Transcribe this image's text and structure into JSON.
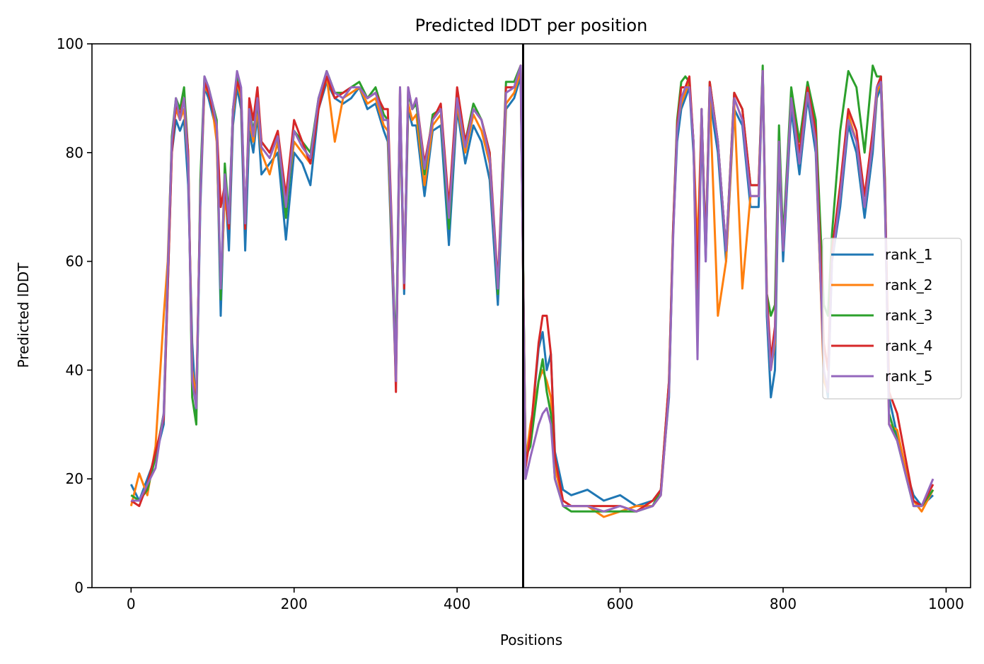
{
  "chart_data": {
    "type": "line",
    "title": "Predicted lDDT per position",
    "xlabel": "Positions",
    "ylabel": "Predicted lDDT",
    "xlim": [
      -48,
      1030
    ],
    "ylim": [
      0,
      100
    ],
    "xticks": [
      0,
      200,
      400,
      600,
      800,
      1000
    ],
    "yticks": [
      0,
      20,
      40,
      60,
      80,
      100
    ],
    "grid": false,
    "legend_position": "center-right",
    "chain_break": {
      "x": 481,
      "color": "#000000"
    },
    "x_sample": [
      0,
      10,
      20,
      30,
      40,
      45,
      50,
      55,
      60,
      65,
      70,
      75,
      80,
      85,
      90,
      95,
      100,
      105,
      110,
      115,
      120,
      125,
      130,
      135,
      140,
      145,
      150,
      155,
      160,
      170,
      180,
      190,
      200,
      210,
      220,
      230,
      240,
      250,
      260,
      270,
      280,
      290,
      300,
      310,
      315,
      320,
      325,
      330,
      335,
      340,
      345,
      350,
      360,
      370,
      380,
      390,
      400,
      410,
      420,
      430,
      440,
      450,
      460,
      470,
      478,
      484,
      490,
      500,
      505,
      510,
      515,
      520,
      530,
      540,
      560,
      580,
      600,
      620,
      640,
      650,
      660,
      665,
      670,
      675,
      680,
      685,
      690,
      695,
      700,
      705,
      710,
      720,
      730,
      740,
      750,
      760,
      770,
      775,
      780,
      785,
      790,
      795,
      800,
      810,
      820,
      830,
      840,
      850,
      855,
      860,
      870,
      880,
      890,
      900,
      910,
      915,
      920,
      925,
      930,
      940,
      950,
      960,
      970,
      984
    ],
    "series": [
      {
        "name": "rank_1",
        "color": "#1f77b4",
        "values": [
          19,
          16,
          20,
          24,
          30,
          55,
          80,
          86,
          84,
          86,
          74,
          45,
          32,
          70,
          92,
          90,
          87,
          84,
          50,
          75,
          62,
          85,
          92,
          88,
          62,
          84,
          80,
          87,
          76,
          78,
          80,
          64,
          80,
          78,
          74,
          88,
          93,
          90,
          89,
          90,
          92,
          88,
          89,
          84,
          82,
          60,
          38,
          88,
          54,
          88,
          85,
          85,
          72,
          84,
          85,
          63,
          88,
          78,
          85,
          82,
          75,
          52,
          88,
          90,
          94,
          24,
          28,
          44,
          47,
          40,
          43,
          25,
          18,
          17,
          18,
          16,
          17,
          15,
          16,
          18,
          35,
          65,
          82,
          88,
          90,
          92,
          80,
          60,
          85,
          60,
          90,
          80,
          60,
          88,
          85,
          70,
          70,
          95,
          50,
          35,
          40,
          80,
          60,
          88,
          76,
          90,
          80,
          40,
          35,
          60,
          70,
          85,
          80,
          68,
          80,
          90,
          92,
          70,
          35,
          28,
          22,
          17,
          15,
          17
        ]
      },
      {
        "name": "rank_2",
        "color": "#ff7f0e",
        "values": [
          15,
          21,
          17,
          26,
          50,
          60,
          82,
          88,
          86,
          88,
          78,
          40,
          35,
          72,
          92,
          91,
          88,
          82,
          55,
          72,
          66,
          87,
          93,
          90,
          68,
          86,
          82,
          88,
          80,
          76,
          82,
          70,
          82,
          80,
          78,
          89,
          94,
          82,
          90,
          91,
          92,
          89,
          90,
          85,
          84,
          62,
          40,
          89,
          58,
          89,
          86,
          87,
          74,
          85,
          87,
          68,
          89,
          80,
          87,
          84,
          78,
          55,
          89,
          91,
          95,
          23,
          30,
          38,
          40,
          38,
          35,
          22,
          16,
          15,
          15,
          13,
          14,
          15,
          15,
          17,
          36,
          65,
          85,
          89,
          91,
          93,
          82,
          62,
          87,
          62,
          91,
          50,
          60,
          89,
          55,
          72,
          72,
          95,
          52,
          40,
          45,
          82,
          62,
          90,
          78,
          91,
          82,
          38,
          36,
          62,
          72,
          87,
          82,
          70,
          82,
          91,
          93,
          72,
          30,
          29,
          22,
          16,
          14,
          18
        ]
      },
      {
        "name": "rank_3",
        "color": "#2ca02c",
        "values": [
          17,
          16,
          18,
          24,
          32,
          58,
          83,
          90,
          88,
          92,
          80,
          35,
          30,
          75,
          94,
          92,
          89,
          86,
          53,
          78,
          68,
          88,
          94,
          91,
          66,
          88,
          84,
          89,
          82,
          80,
          83,
          68,
          84,
          82,
          80,
          90,
          95,
          91,
          91,
          92,
          93,
          90,
          92,
          87,
          86,
          64,
          42,
          91,
          56,
          91,
          88,
          89,
          76,
          87,
          88,
          66,
          91,
          82,
          89,
          86,
          80,
          54,
          93,
          93,
          96,
          24,
          26,
          38,
          42,
          36,
          32,
          20,
          15,
          14,
          14,
          14,
          14,
          14,
          15,
          18,
          38,
          66,
          86,
          93,
          94,
          93,
          82,
          45,
          88,
          62,
          93,
          82,
          62,
          91,
          88,
          74,
          74,
          96,
          54,
          50,
          52,
          85,
          64,
          92,
          82,
          93,
          86,
          52,
          50,
          65,
          84,
          95,
          92,
          80,
          96,
          94,
          94,
          75,
          32,
          27,
          21,
          15,
          15,
          18
        ]
      },
      {
        "name": "rank_4",
        "color": "#d62728",
        "values": [
          16,
          15,
          19,
          25,
          31,
          55,
          80,
          89,
          87,
          90,
          80,
          38,
          34,
          72,
          93,
          91,
          88,
          85,
          70,
          74,
          66,
          88,
          93,
          91,
          66,
          90,
          86,
          92,
          82,
          80,
          84,
          72,
          86,
          82,
          78,
          88,
          94,
          90,
          91,
          92,
          92,
          90,
          91,
          88,
          88,
          66,
          36,
          92,
          55,
          92,
          88,
          90,
          78,
          86,
          89,
          70,
          92,
          82,
          88,
          86,
          80,
          56,
          92,
          92,
          96,
          22,
          28,
          45,
          50,
          50,
          43,
          24,
          16,
          15,
          15,
          15,
          15,
          14,
          16,
          18,
          38,
          66,
          85,
          92,
          92,
          94,
          82,
          55,
          88,
          62,
          93,
          82,
          62,
          91,
          88,
          74,
          74,
          95,
          54,
          42,
          48,
          82,
          62,
          90,
          80,
          92,
          84,
          45,
          40,
          62,
          74,
          88,
          84,
          72,
          84,
          92,
          94,
          74,
          36,
          32,
          24,
          16,
          15,
          19
        ]
      },
      {
        "name": "rank_5",
        "color": "#9467bd",
        "values": [
          16,
          16,
          19,
          22,
          32,
          58,
          82,
          90,
          86,
          90,
          78,
          38,
          33,
          72,
          94,
          92,
          89,
          85,
          55,
          76,
          67,
          88,
          95,
          92,
          67,
          88,
          83,
          90,
          81,
          79,
          83,
          70,
          84,
          81,
          79,
          90,
          95,
          91,
          90,
          92,
          92,
          90,
          91,
          86,
          86,
          65,
          38,
          92,
          56,
          92,
          88,
          90,
          77,
          86,
          88,
          68,
          90,
          81,
          88,
          86,
          79,
          55,
          91,
          92,
          96,
          20,
          24,
          30,
          32,
          33,
          30,
          20,
          15,
          15,
          15,
          14,
          15,
          14,
          15,
          17,
          36,
          64,
          84,
          90,
          92,
          92,
          82,
          42,
          88,
          60,
          92,
          82,
          62,
          90,
          86,
          72,
          72,
          95,
          52,
          40,
          46,
          82,
          62,
          90,
          78,
          91,
          82,
          40,
          36,
          60,
          72,
          86,
          82,
          70,
          82,
          92,
          93,
          72,
          30,
          27,
          21,
          15,
          15,
          20
        ]
      }
    ]
  }
}
